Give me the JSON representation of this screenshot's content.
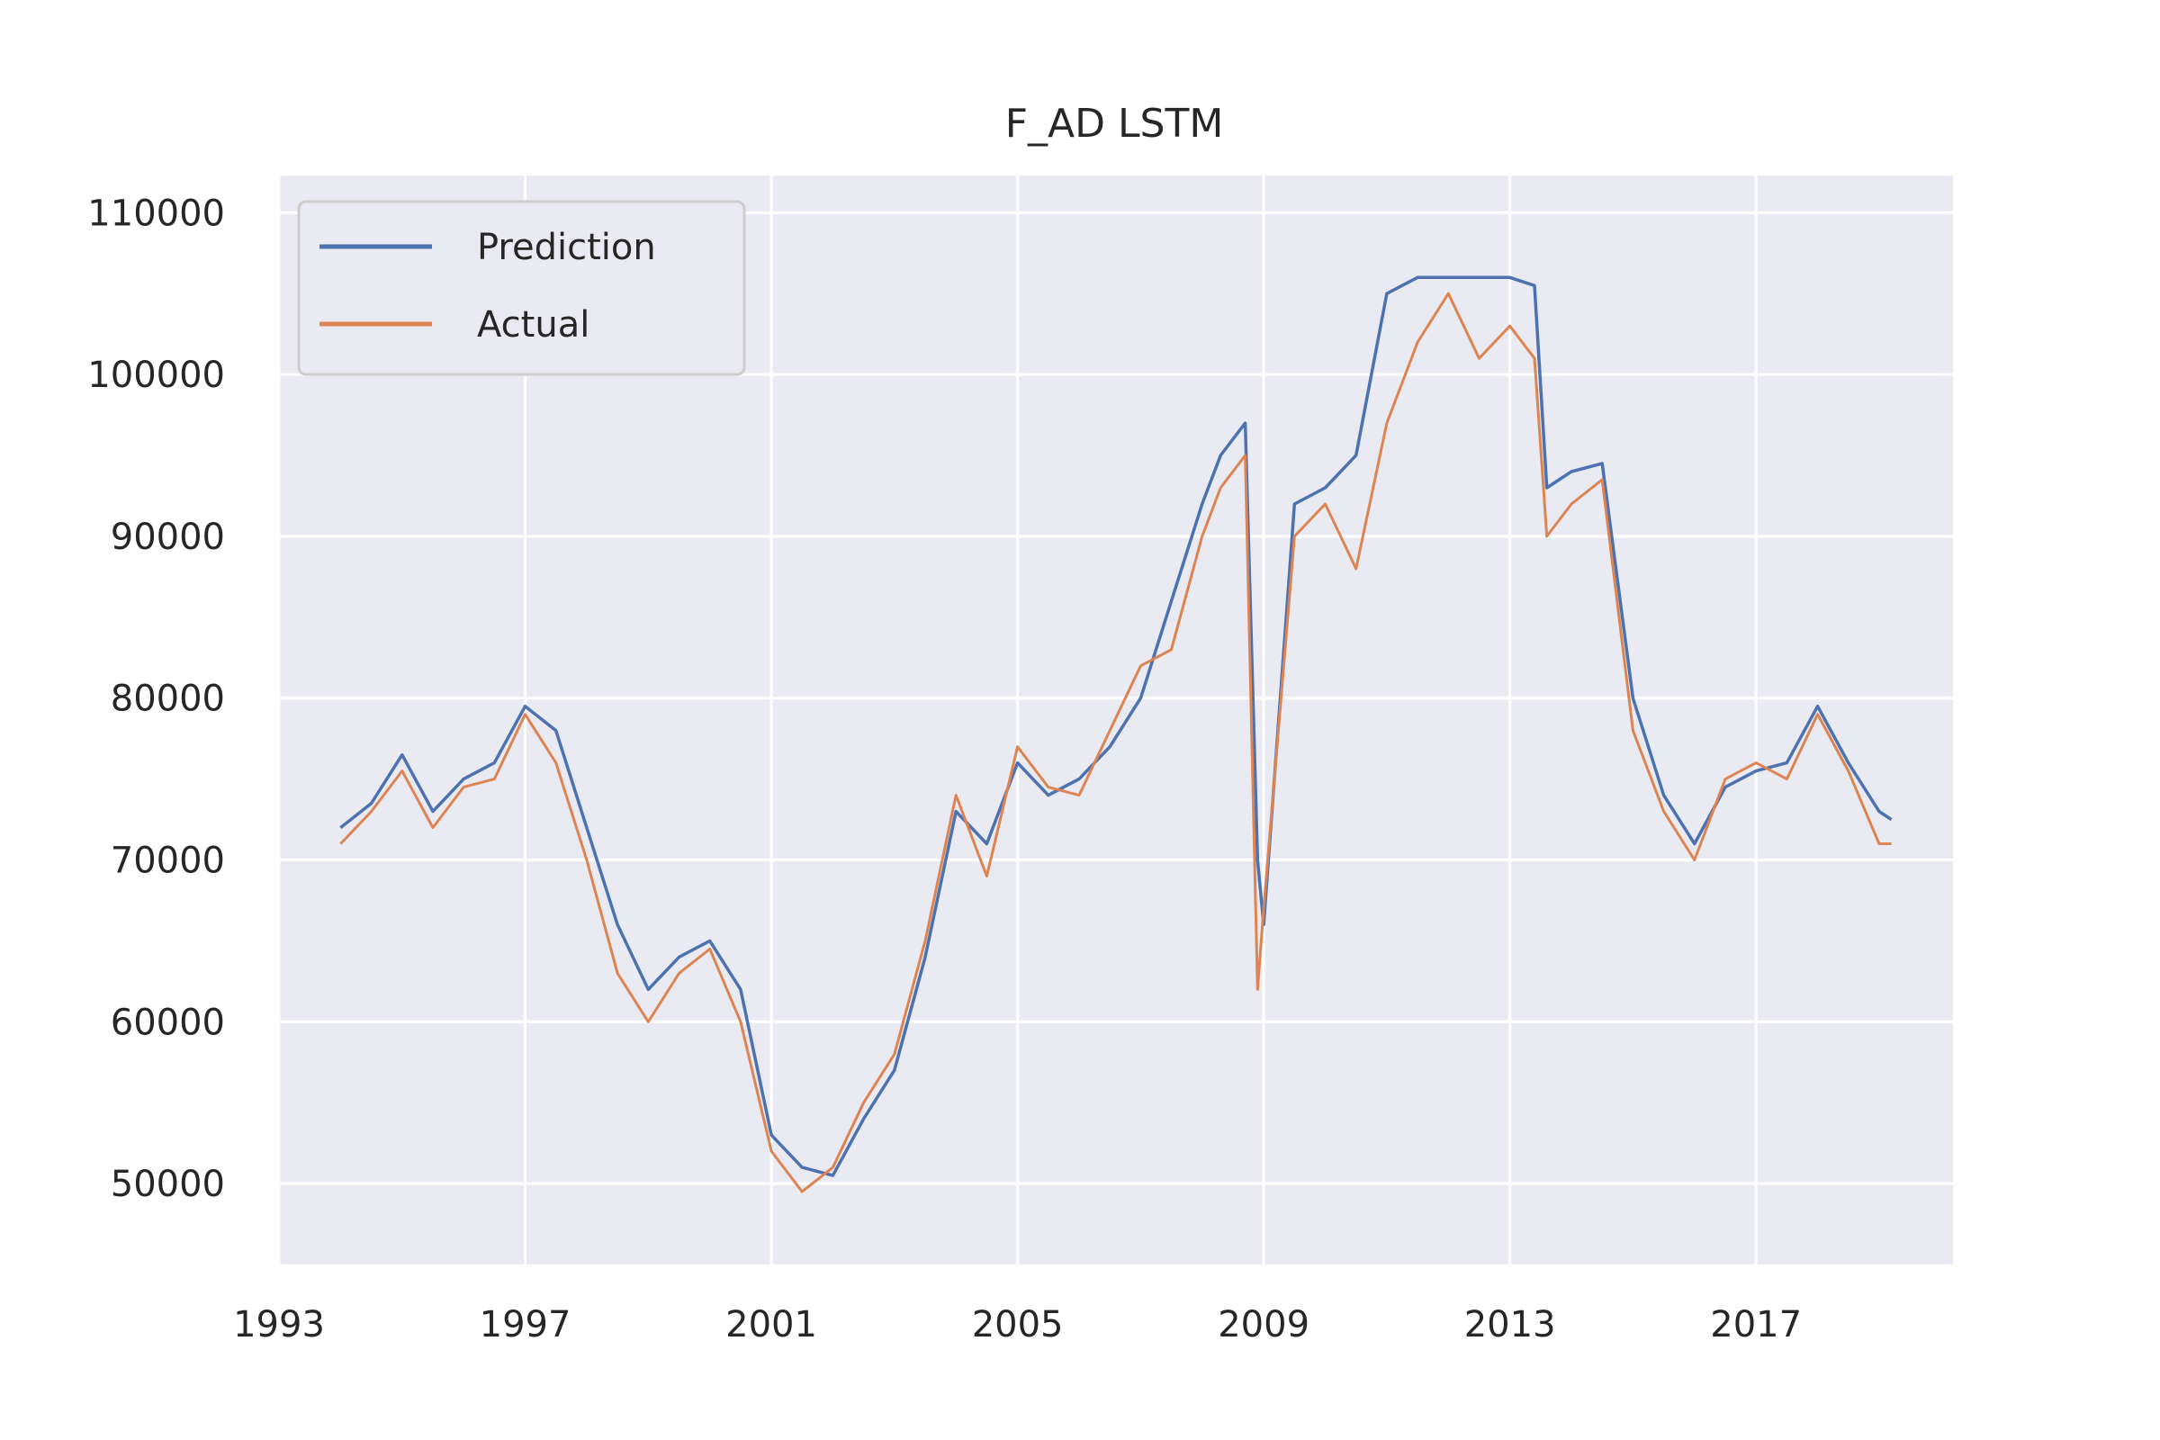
{
  "chart_data": {
    "type": "line",
    "title": "F_AD LSTM",
    "xlabel": "",
    "ylabel": "",
    "xlim": [
      1993.0,
      2020.2
    ],
    "ylim": [
      45000,
      112300
    ],
    "x_ticks": [
      1993,
      1997,
      2001,
      2005,
      2009,
      2013,
      2017
    ],
    "x_tick_labels": [
      "1993",
      "1997",
      "2001",
      "2005",
      "2009",
      "2013",
      "2017"
    ],
    "y_ticks": [
      50000,
      60000,
      70000,
      80000,
      90000,
      100000,
      110000
    ],
    "y_tick_labels": [
      "50000",
      "60000",
      "70000",
      "80000",
      "90000",
      "100000",
      "110000"
    ],
    "grid": true,
    "legend_position": "top-left",
    "x": [
      1994.0,
      1994.5,
      1995.0,
      1995.5,
      1996.0,
      1996.5,
      1997.0,
      1997.5,
      1998.0,
      1998.5,
      1999.0,
      1999.5,
      2000.0,
      2000.5,
      2001.0,
      2001.5,
      2002.0,
      2002.5,
      2003.0,
      2003.5,
      2004.0,
      2004.5,
      2005.0,
      2005.5,
      2006.0,
      2006.5,
      2007.0,
      2007.5,
      2008.0,
      2008.3,
      2008.7,
      2008.9,
      2009.0,
      2009.5,
      2010.0,
      2010.5,
      2011.0,
      2011.5,
      2012.0,
      2012.5,
      2013.0,
      2013.4,
      2013.6,
      2014.0,
      2014.5,
      2015.0,
      2015.5,
      2016.0,
      2016.5,
      2017.0,
      2017.5,
      2018.0,
      2018.5,
      2019.0,
      2019.2
    ],
    "series": [
      {
        "name": "Prediction",
        "color": "#4c72b0",
        "values": [
          72000,
          73500,
          76500,
          73000,
          75000,
          76000,
          79500,
          78000,
          72000,
          66000,
          62000,
          64000,
          65000,
          62000,
          53000,
          51000,
          50500,
          54000,
          57000,
          64000,
          73000,
          71000,
          76000,
          74000,
          75000,
          77000,
          80000,
          86000,
          92000,
          95000,
          97000,
          70000,
          66000,
          92000,
          93000,
          95000,
          105000,
          106000,
          106000,
          106000,
          106000,
          105500,
          93000,
          94000,
          94500,
          80000,
          74000,
          71000,
          74500,
          75500,
          76000,
          79500,
          76000,
          73000,
          72500
        ]
      },
      {
        "name": "Actual",
        "color": "#dd8452",
        "values": [
          71000,
          73000,
          75500,
          72000,
          74500,
          75000,
          79000,
          76000,
          70000,
          63000,
          60000,
          63000,
          64500,
          60000,
          52000,
          49500,
          51000,
          55000,
          58000,
          65000,
          74000,
          69000,
          77000,
          74500,
          74000,
          78000,
          82000,
          83000,
          90000,
          93000,
          95000,
          62000,
          67000,
          90000,
          92000,
          88000,
          97000,
          102000,
          105000,
          101000,
          103000,
          101000,
          90000,
          92000,
          93500,
          78000,
          73000,
          70000,
          75000,
          76000,
          75000,
          79000,
          75500,
          71000,
          71000
        ]
      }
    ]
  }
}
